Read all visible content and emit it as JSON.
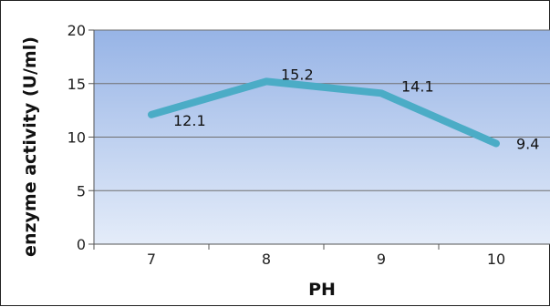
{
  "chart_data": {
    "type": "line",
    "title": "",
    "xlabel": "PH",
    "ylabel": "enzyme activity (U/ml)",
    "categories": [
      "7",
      "8",
      "9",
      "10"
    ],
    "series": [
      {
        "values": [
          12.1,
          15.2,
          14.1,
          9.4
        ],
        "data_labels": [
          "12.1",
          "15.2",
          "14.1",
          "9.4"
        ]
      }
    ],
    "ylim": [
      0,
      20
    ],
    "yticks": [
      "0",
      "5",
      "10",
      "15",
      "20"
    ],
    "grid": true,
    "legend": "none",
    "colors": {
      "line": "#4bacc6",
      "plot_bg_top": "#97b4e6",
      "plot_bg_bottom": "#e4ecf9",
      "gridline": "#6f6f6f"
    }
  }
}
